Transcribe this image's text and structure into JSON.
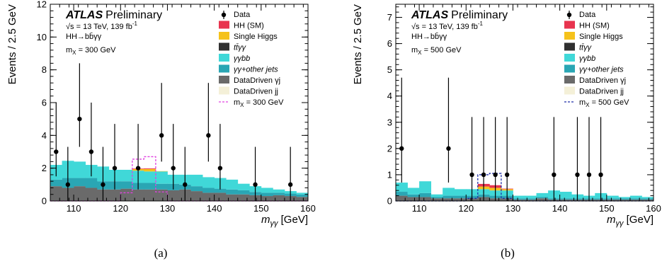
{
  "colors": {
    "hh_sm": "#e8344f",
    "single_higgs": "#f5c21b",
    "ttyy": "#303030",
    "yybb": "#40d8d8",
    "yy_other_jets": "#2aa6b4",
    "dd_yj": "#6a6a6a",
    "dd_jj": "#f4f0d8",
    "signal_300": "#e040e0",
    "signal_500": "#1f2fa8",
    "data": "#000000"
  },
  "chart_data": [
    {
      "type": "bar",
      "panel_label": "(a)",
      "atlas_label": "ATLAS",
      "atlas_status": "Preliminary",
      "energy_line": "√s = 13 TeV, 139 fb",
      "lumi_sup": "-1",
      "channel_line": "HH→bb̄γγ",
      "mass_line": "m",
      "mass_sub": "X",
      "mass_value": " = 300 GeV",
      "xlabel": "m",
      "xlabel_sub": "γγ",
      "xlabel_unit": " [GeV]",
      "ylabel": "Events / 2.5 GeV",
      "xlim": [
        105,
        160
      ],
      "ylim": [
        0,
        12
      ],
      "xticks": [
        110,
        120,
        130,
        140,
        150,
        160
      ],
      "yticks": [
        0,
        2,
        4,
        6,
        8,
        10,
        12
      ],
      "legend": [
        "Data",
        "HH (SM)",
        "Single Higgs",
        "tt̄γγ",
        "γγbb",
        "γγ+other jets",
        "DataDriven γj",
        "DataDriven jj",
        "m",
        "X",
        " = 300 GeV"
      ],
      "bin_edges": [
        105,
        107.5,
        110,
        112.5,
        115,
        117.5,
        120,
        122.5,
        125,
        127.5,
        130,
        132.5,
        135,
        137.5,
        140,
        142.5,
        145,
        147.5,
        150,
        152.5,
        155,
        157.5,
        160
      ],
      "series": [
        {
          "key": "dd_yj",
          "values": [
            0.9,
            0.8,
            0.9,
            0.8,
            0.7,
            0.7,
            0.75,
            0.7,
            0.7,
            0.7,
            0.65,
            0.7,
            0.6,
            0.5,
            0.5,
            0.4,
            0.4,
            0.35,
            0.3,
            0.35,
            0.3,
            0.25
          ]
        },
        {
          "key": "yy_other_jets",
          "values": [
            0.4,
            0.6,
            0.5,
            0.6,
            0.5,
            0.5,
            0.45,
            0.4,
            0.4,
            0.35,
            0.4,
            0.3,
            0.3,
            0.3,
            0.25,
            0.3,
            0.25,
            0.2,
            0.2,
            0.15,
            0.15,
            0.15
          ]
        },
        {
          "key": "yybb",
          "values": [
            0.9,
            1.05,
            1.0,
            0.8,
            0.9,
            0.7,
            0.7,
            0.75,
            0.7,
            0.75,
            0.55,
            0.6,
            0.7,
            0.65,
            0.65,
            0.6,
            0.4,
            0.35,
            0.3,
            0.2,
            0.15,
            0.1
          ]
        },
        {
          "key": "ttyy",
          "values": [
            0,
            0,
            0,
            0,
            0,
            0,
            0,
            0,
            0,
            0,
            0,
            0,
            0,
            0,
            0,
            0,
            0,
            0,
            0,
            0,
            0,
            0
          ]
        },
        {
          "key": "single_higgs",
          "values": [
            0,
            0,
            0,
            0,
            0,
            0,
            0,
            0.1,
            0.15,
            0.02,
            0,
            0,
            0,
            0,
            0,
            0,
            0,
            0,
            0,
            0,
            0,
            0
          ]
        },
        {
          "key": "hh_sm",
          "values": [
            0,
            0,
            0,
            0,
            0,
            0,
            0,
            0.03,
            0.04,
            0,
            0,
            0,
            0,
            0,
            0,
            0,
            0,
            0,
            0,
            0,
            0,
            0
          ]
        }
      ],
      "signal": {
        "name": "m_X = 300 GeV",
        "values": [
          0,
          0,
          0,
          0,
          0,
          0,
          0.5,
          2.55,
          2.7,
          0.55,
          0,
          0,
          0,
          0,
          0,
          0,
          0,
          0,
          0,
          0,
          0,
          0
        ]
      },
      "data_points": [
        {
          "x": 106.25,
          "y": 3,
          "lo": 1.5,
          "hi": 6.0
        },
        {
          "x": 108.75,
          "y": 1,
          "lo": 0,
          "hi": 3.3
        },
        {
          "x": 111.25,
          "y": 5,
          "lo": 3.3,
          "hi": 8.4
        },
        {
          "x": 113.75,
          "y": 3,
          "lo": 1.5,
          "hi": 6.0
        },
        {
          "x": 116.25,
          "y": 1,
          "lo": 0,
          "hi": 3.3
        },
        {
          "x": 118.75,
          "y": 2,
          "lo": 0.7,
          "hi": 4.7
        },
        {
          "x": 123.75,
          "y": 2,
          "lo": 0.7,
          "hi": 4.7
        },
        {
          "x": 128.75,
          "y": 4,
          "lo": 2.4,
          "hi": 7.2
        },
        {
          "x": 131.25,
          "y": 2,
          "lo": 0.7,
          "hi": 4.7
        },
        {
          "x": 133.75,
          "y": 1,
          "lo": 0,
          "hi": 3.3
        },
        {
          "x": 138.75,
          "y": 4,
          "lo": 2.4,
          "hi": 7.2
        },
        {
          "x": 141.25,
          "y": 2,
          "lo": 0.7,
          "hi": 4.7
        },
        {
          "x": 148.75,
          "y": 1,
          "lo": 0,
          "hi": 3.3
        },
        {
          "x": 156.25,
          "y": 1,
          "lo": 0,
          "hi": 3.3
        }
      ]
    },
    {
      "type": "bar",
      "panel_label": "(b)",
      "atlas_label": "ATLAS",
      "atlas_status": "Preliminary",
      "energy_line": "√s = 13 TeV, 139 fb",
      "lumi_sup": "-1",
      "channel_line": "HH→bb̄γγ",
      "mass_line": "m",
      "mass_sub": "X",
      "mass_value": " = 500 GeV",
      "xlabel": "m",
      "xlabel_sub": "γγ",
      "xlabel_unit": " [GeV]",
      "ylabel": "Events / 2.5 GeV",
      "xlim": [
        105,
        160
      ],
      "ylim": [
        0,
        7.5
      ],
      "xticks": [
        110,
        120,
        130,
        140,
        150,
        160
      ],
      "yticks": [
        0,
        1,
        2,
        3,
        4,
        5,
        6,
        7
      ],
      "legend": [
        "Data",
        "HH (SM)",
        "Single Higgs",
        "tt̄γγ",
        "γγbb",
        "γγ+other jets",
        "DataDriven γj",
        "DataDriven jj",
        "m",
        "X",
        " = 500 GeV"
      ],
      "bin_edges": [
        105,
        107.5,
        110,
        112.5,
        115,
        117.5,
        120,
        122.5,
        125,
        127.5,
        130,
        132.5,
        135,
        137.5,
        140,
        142.5,
        145,
        147.5,
        150,
        152.5,
        155,
        157.5,
        160
      ],
      "series": [
        {
          "key": "dd_yj",
          "values": [
            0.2,
            0.15,
            0.15,
            0.1,
            0.1,
            0.1,
            0.1,
            0.15,
            0.1,
            0.1,
            0.05,
            0.05,
            0.1,
            0.05,
            0.05,
            0.05,
            0.05,
            0.05,
            0.05,
            0.05,
            0.05,
            0.05
          ]
        },
        {
          "key": "yy_other_jets",
          "values": [
            0.15,
            0.1,
            0.15,
            0.05,
            0.1,
            0.1,
            0.1,
            0.1,
            0.1,
            0.1,
            0.05,
            0.05,
            0.05,
            0.05,
            0.05,
            0.05,
            0.05,
            0.05,
            0.05,
            0.05,
            0.05,
            0.05
          ]
        },
        {
          "key": "yybb",
          "values": [
            0.35,
            0.25,
            0.45,
            0.1,
            0.3,
            0.25,
            0.25,
            0.2,
            0.2,
            0.2,
            0.1,
            0.1,
            0.15,
            0.3,
            0.25,
            0.15,
            0.1,
            0.2,
            0.1,
            0.05,
            0.1,
            0.05
          ]
        },
        {
          "key": "ttyy",
          "values": [
            0,
            0,
            0,
            0,
            0,
            0,
            0,
            0,
            0,
            0,
            0,
            0,
            0,
            0,
            0,
            0,
            0,
            0,
            0,
            0,
            0,
            0
          ]
        },
        {
          "key": "single_higgs",
          "values": [
            0,
            0,
            0,
            0,
            0,
            0,
            0,
            0.1,
            0.1,
            0.05,
            0,
            0,
            0,
            0,
            0,
            0,
            0,
            0,
            0,
            0,
            0,
            0
          ]
        },
        {
          "key": "hh_sm",
          "values": [
            0,
            0,
            0,
            0,
            0,
            0,
            0,
            0.1,
            0.1,
            0.02,
            0,
            0,
            0,
            0,
            0,
            0,
            0,
            0,
            0,
            0,
            0,
            0
          ]
        }
      ],
      "signal": {
        "name": "m_X = 500 GeV",
        "values": [
          0,
          0,
          0,
          0,
          0,
          0,
          0.1,
          1.0,
          1.05,
          0.1,
          0,
          0,
          0,
          0,
          0,
          0,
          0,
          0,
          0,
          0,
          0,
          0
        ]
      },
      "data_points": [
        {
          "x": 106.25,
          "y": 2,
          "lo": 0.7,
          "hi": 4.7
        },
        {
          "x": 116.25,
          "y": 2,
          "lo": 0.7,
          "hi": 4.7
        },
        {
          "x": 121.25,
          "y": 1,
          "lo": 0,
          "hi": 3.2
        },
        {
          "x": 123.75,
          "y": 1,
          "lo": 0,
          "hi": 3.2
        },
        {
          "x": 126.25,
          "y": 1,
          "lo": 0,
          "hi": 3.2
        },
        {
          "x": 128.75,
          "y": 1,
          "lo": 0,
          "hi": 3.2
        },
        {
          "x": 138.75,
          "y": 1,
          "lo": 0,
          "hi": 3.2
        },
        {
          "x": 143.75,
          "y": 1,
          "lo": 0,
          "hi": 3.2
        },
        {
          "x": 146.25,
          "y": 1,
          "lo": 0,
          "hi": 3.2
        },
        {
          "x": 148.75,
          "y": 1,
          "lo": 0,
          "hi": 3.2
        }
      ]
    }
  ]
}
